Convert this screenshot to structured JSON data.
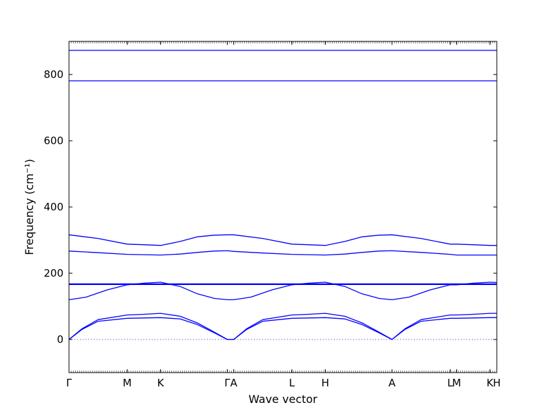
{
  "chart_data": {
    "type": "line",
    "title": "",
    "xlabel": "Wave vector",
    "ylabel": "Frequency (cm⁻¹)",
    "ylim": [
      -100,
      900
    ],
    "yticks": [
      0,
      200,
      400,
      600,
      800
    ],
    "grid": false,
    "line_color": "#0000ff",
    "zero_line_color": "#3333cc",
    "high_symmetry_points": [
      {
        "label": "Γ",
        "x": 0.0
      },
      {
        "label": "M",
        "x": 0.136
      },
      {
        "label": "K",
        "x": 0.214
      },
      {
        "label": "Γ",
        "x": 0.37
      },
      {
        "label": "A",
        "x": 0.385
      },
      {
        "label": "L",
        "x": 0.521
      },
      {
        "label": "H",
        "x": 0.599
      },
      {
        "label": "A",
        "x": 0.755
      },
      {
        "label": "L",
        "x": 0.891
      },
      {
        "label": "M",
        "x": 0.906
      },
      {
        "label": "K",
        "x": 0.984
      },
      {
        "label": "H",
        "x": 1.0
      }
    ],
    "series": [
      {
        "x": [
          0,
          0.03,
          0.068,
          0.136,
          0.175,
          0.214,
          0.26,
          0.3,
          0.34,
          0.37,
          0.385,
          0.415,
          0.453,
          0.521,
          0.56,
          0.599,
          0.645,
          0.685,
          0.725,
          0.755,
          0.785,
          0.823,
          0.891,
          0.906,
          0.945,
          0.984,
          1.0
        ],
        "y": [
          0,
          30,
          55,
          64,
          65,
          66,
          62,
          45,
          20,
          0,
          0,
          30,
          55,
          64,
          65,
          66,
          62,
          45,
          20,
          0,
          30,
          55,
          64,
          64,
          65,
          66,
          66
        ]
      },
      {
        "x": [
          0,
          0.03,
          0.068,
          0.136,
          0.175,
          0.214,
          0.26,
          0.3,
          0.34,
          0.37,
          0.385,
          0.415,
          0.453,
          0.521,
          0.56,
          0.599,
          0.645,
          0.685,
          0.725,
          0.755,
          0.785,
          0.823,
          0.891,
          0.906,
          0.945,
          0.984,
          1.0
        ],
        "y": [
          0,
          32,
          60,
          74,
          76,
          79,
          70,
          50,
          22,
          0,
          0,
          32,
          60,
          74,
          76,
          79,
          70,
          50,
          22,
          0,
          32,
          60,
          74,
          74,
          76,
          79,
          79
        ]
      },
      {
        "x": [
          0,
          0.04,
          0.09,
          0.136,
          0.175,
          0.214,
          0.26,
          0.3,
          0.34,
          0.37,
          0.385,
          0.425,
          0.475,
          0.521,
          0.56,
          0.599,
          0.645,
          0.685,
          0.725,
          0.755,
          0.795,
          0.845,
          0.891,
          0.906,
          0.945,
          0.984,
          1.0
        ],
        "y": [
          120,
          128,
          150,
          165,
          170,
          173,
          160,
          138,
          124,
          120,
          120,
          128,
          150,
          165,
          170,
          173,
          160,
          138,
          124,
          120,
          128,
          150,
          165,
          165,
          170,
          173,
          172
        ]
      },
      {
        "x": [
          0,
          0.136,
          0.214,
          0.37,
          0.385,
          0.521,
          0.599,
          0.755,
          0.891,
          0.906,
          0.984,
          1.0
        ],
        "y": [
          166,
          166,
          166,
          166,
          166,
          166,
          166,
          166,
          166,
          166,
          166,
          166
        ]
      },
      {
        "x": [
          0,
          0.136,
          0.214,
          0.37,
          0.385,
          0.521,
          0.599,
          0.755,
          0.891,
          0.906,
          0.984,
          1.0
        ],
        "y": [
          168,
          168,
          168,
          168,
          168,
          168,
          168,
          168,
          168,
          168,
          168,
          168
        ]
      },
      {
        "x": [
          0,
          0.068,
          0.136,
          0.175,
          0.214,
          0.26,
          0.3,
          0.34,
          0.37,
          0.385,
          0.453,
          0.521,
          0.56,
          0.599,
          0.645,
          0.685,
          0.725,
          0.755,
          0.823,
          0.891,
          0.906,
          0.945,
          0.984,
          1.0
        ],
        "y": [
          267,
          262,
          257,
          256,
          255,
          258,
          263,
          267,
          268,
          266,
          261,
          257,
          256,
          255,
          258,
          263,
          267,
          268,
          263,
          257,
          255,
          255,
          255,
          255
        ]
      },
      {
        "x": [
          0,
          0.068,
          0.136,
          0.175,
          0.214,
          0.26,
          0.3,
          0.34,
          0.37,
          0.385,
          0.453,
          0.521,
          0.56,
          0.599,
          0.645,
          0.685,
          0.725,
          0.755,
          0.823,
          0.891,
          0.906,
          0.945,
          0.984,
          1.0
        ],
        "y": [
          316,
          305,
          288,
          286,
          284,
          296,
          310,
          315,
          316,
          316,
          305,
          288,
          286,
          284,
          296,
          310,
          315,
          316,
          305,
          288,
          288,
          286,
          284,
          284
        ]
      },
      {
        "x": [
          0,
          0.136,
          0.214,
          0.37,
          0.385,
          0.521,
          0.599,
          0.755,
          0.891,
          0.906,
          0.984,
          1.0
        ],
        "y": [
          781,
          781,
          781,
          781,
          781,
          781,
          781,
          781,
          781,
          781,
          781,
          781
        ]
      },
      {
        "x": [
          0,
          0.136,
          0.214,
          0.37,
          0.385,
          0.521,
          0.599,
          0.755,
          0.891,
          0.906,
          0.984,
          1.0
        ],
        "y": [
          873,
          873,
          873,
          873,
          873,
          873,
          873,
          873,
          873,
          873,
          873,
          873
        ]
      }
    ]
  }
}
